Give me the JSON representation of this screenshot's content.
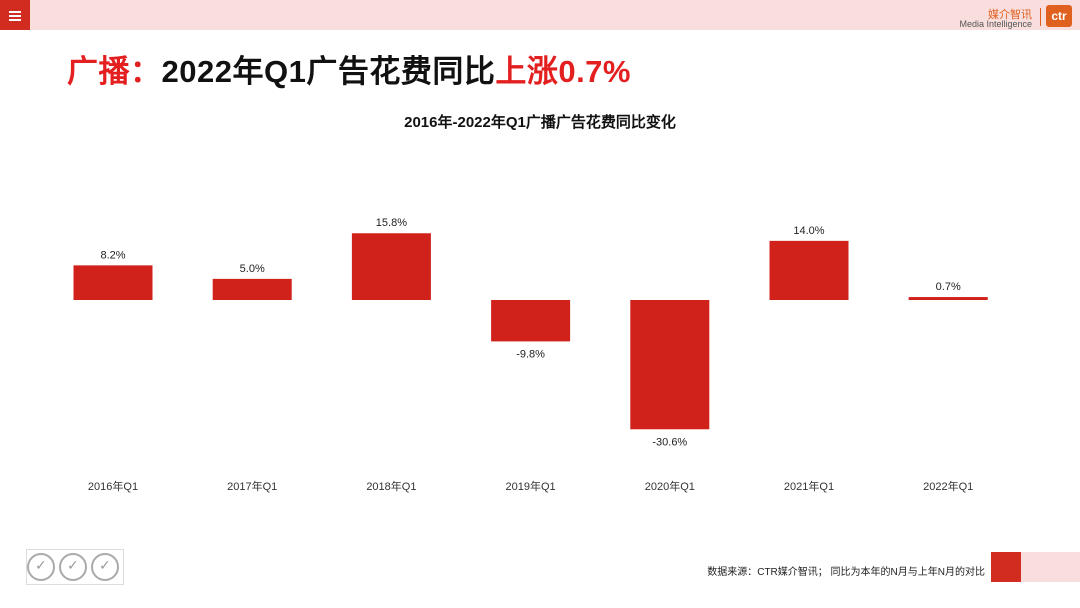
{
  "header": {
    "menu_icon": "menu-icon",
    "logo_cn": "媒介智讯",
    "logo_en": "Media Intelligence",
    "logo_mark": "ctr"
  },
  "headline": {
    "part1": "广播：",
    "part2": "2022年Q1广告花费同比",
    "part3": "上涨0.7%"
  },
  "chart_data": {
    "type": "bar",
    "title": "2016年-2022年Q1广播广告花费同比变化",
    "xlabel": "",
    "ylabel": "",
    "categories": [
      "2016年Q1",
      "2017年Q1",
      "2018年Q1",
      "2019年Q1",
      "2020年Q1",
      "2021年Q1",
      "2022年Q1"
    ],
    "values": [
      8.2,
      5.0,
      15.8,
      -9.8,
      -30.6,
      14.0,
      0.7
    ],
    "labels": [
      "8.2%",
      "5.0%",
      "15.8%",
      "-9.8%",
      "-30.6%",
      "14.0%",
      "0.7%"
    ],
    "bar_color": "#d0221b",
    "grid": false,
    "legend": "none"
  },
  "footer": {
    "source": "数据来源：CTR媒介智讯；  同比为本年的N月与上年N月的对比"
  },
  "colors": {
    "accent_red": "#d22b1f",
    "headline_red": "#e31f1f",
    "band_pink": "#f9dede",
    "logo_orange": "#e0601f"
  }
}
